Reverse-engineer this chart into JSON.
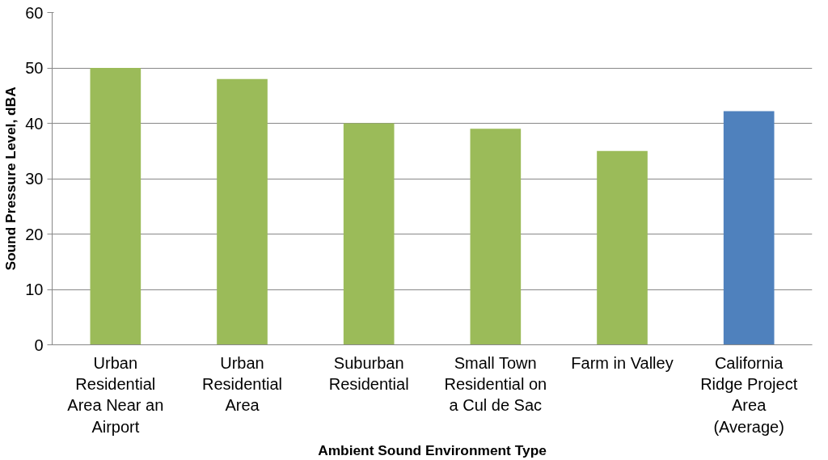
{
  "chart_data": {
    "type": "bar",
    "xlabel": "Ambient Sound Environment Type",
    "ylabel": "Sound Pressure Level, dBA",
    "categories": [
      "Urban\nResidential\nArea Near an\nAirport",
      "Urban\nResidential\nArea",
      "Suburban\nResidential",
      "Small Town\nResidential on\na Cul de Sac",
      "Farm in Valley",
      "California\nRidge Project\nArea\n(Average)"
    ],
    "values": [
      50,
      48,
      40,
      39,
      35,
      42.2
    ],
    "colors": [
      "#9bbb59",
      "#9bbb59",
      "#9bbb59",
      "#9bbb59",
      "#9bbb59",
      "#4f81bd"
    ],
    "ylim": [
      0,
      60
    ],
    "yticks": [
      0,
      10,
      20,
      30,
      40,
      50,
      60
    ],
    "grid": "y"
  }
}
